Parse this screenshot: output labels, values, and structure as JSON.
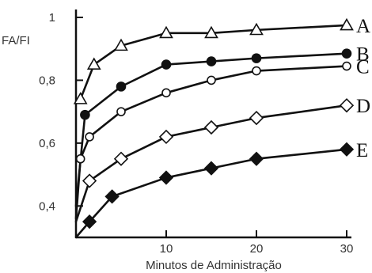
{
  "chart_data": {
    "type": "line",
    "title": "",
    "xlabel": "Minutos de Administração",
    "ylabel": "FA/FI",
    "xlim": [
      0,
      30
    ],
    "ylim": [
      0.3,
      1.0
    ],
    "x_ticks": [
      10,
      20,
      30
    ],
    "y_ticks": [
      0.4,
      0.6,
      0.8,
      1
    ],
    "y_tick_labels": [
      "0,4",
      "0,6",
      "0,8",
      "1"
    ],
    "x_tick_labels": [
      "10",
      "20",
      "30"
    ],
    "grid": false,
    "legend": "none",
    "series": [
      {
        "name": "A",
        "marker": "triangle-open",
        "color": "#111111",
        "x": [
          0.5,
          2,
          5,
          10,
          15,
          20,
          30
        ],
        "y": [
          0.74,
          0.85,
          0.91,
          0.95,
          0.95,
          0.96,
          0.975
        ]
      },
      {
        "name": "B",
        "marker": "circle-filled",
        "color": "#111111",
        "x": [
          0,
          1,
          5,
          10,
          15,
          20,
          30
        ],
        "y": [
          0.4,
          0.69,
          0.78,
          0.85,
          0.86,
          0.87,
          0.885
        ]
      },
      {
        "name": "C",
        "marker": "circle-open",
        "color": "#111111",
        "x": [
          0,
          0.5,
          1.5,
          5,
          10,
          15,
          20,
          30
        ],
        "y": [
          0.36,
          0.55,
          0.62,
          0.7,
          0.76,
          0.8,
          0.83,
          0.845
        ]
      },
      {
        "name": "D",
        "marker": "diamond-open",
        "color": "#111111",
        "x": [
          0,
          1.5,
          5,
          10,
          15,
          20,
          30
        ],
        "y": [
          0.35,
          0.48,
          0.55,
          0.62,
          0.65,
          0.68,
          0.72
        ]
      },
      {
        "name": "E",
        "marker": "diamond-filled",
        "color": "#111111",
        "x": [
          0,
          1.5,
          4,
          10,
          15,
          20,
          30
        ],
        "y": [
          0.3,
          0.35,
          0.43,
          0.49,
          0.52,
          0.55,
          0.58
        ]
      }
    ]
  }
}
